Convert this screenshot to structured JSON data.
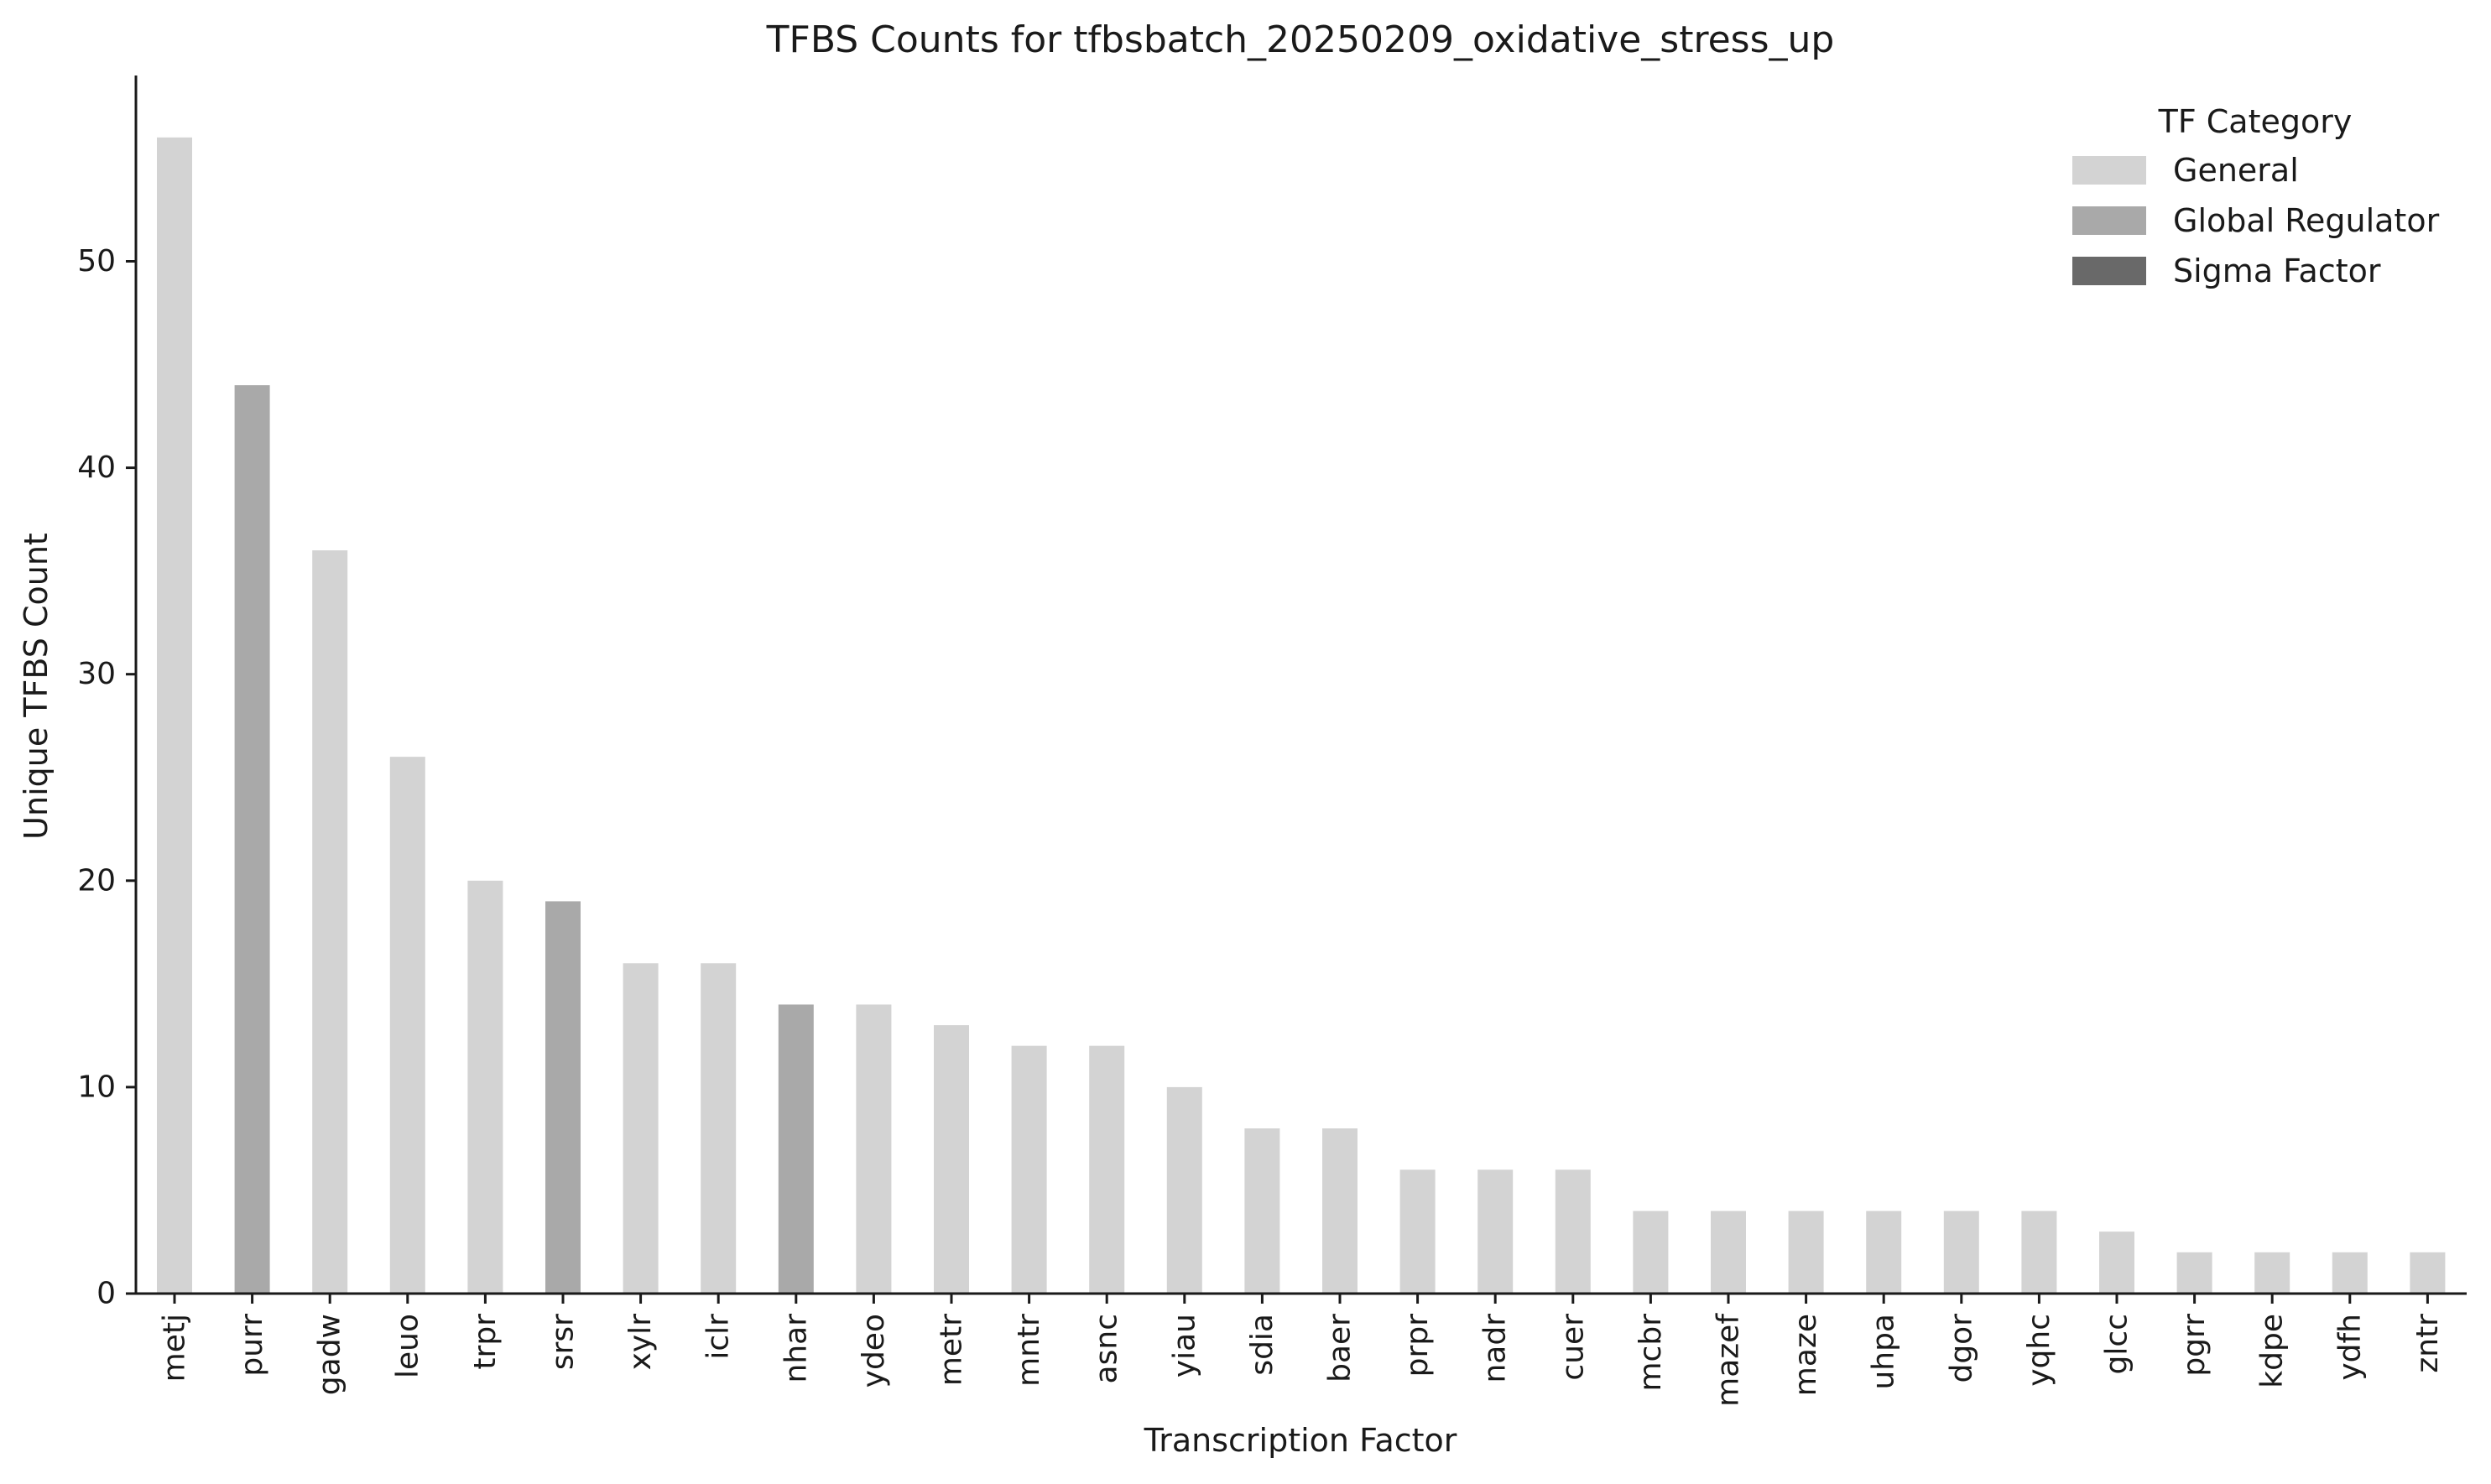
{
  "chart_data": {
    "type": "bar",
    "title": "TFBS Counts for tfbsbatch_20250209_oxidative_stress_up",
    "xlabel": "Transcription Factor",
    "ylabel": "Unique TFBS Count",
    "ylim": [
      0,
      59
    ],
    "yticks": [
      0,
      10,
      20,
      30,
      40,
      50
    ],
    "categories": [
      "metj",
      "purr",
      "gadw",
      "leuo",
      "trpr",
      "srsr",
      "xylr",
      "iclr",
      "nhar",
      "ydeo",
      "metr",
      "mntr",
      "asnc",
      "yiau",
      "sdia",
      "baer",
      "prpr",
      "nadr",
      "cuer",
      "mcbr",
      "mazef",
      "maze",
      "uhpa",
      "dgor",
      "yqhc",
      "glcc",
      "pgrr",
      "kdpe",
      "ydfh",
      "zntr"
    ],
    "values": [
      56,
      44,
      36,
      26,
      20,
      19,
      16,
      16,
      14,
      14,
      13,
      12,
      12,
      10,
      8,
      8,
      6,
      6,
      6,
      4,
      4,
      4,
      4,
      4,
      4,
      3,
      2,
      2,
      2,
      2
    ],
    "bar_category": [
      "General",
      "Global Regulator",
      "General",
      "General",
      "General",
      "Global Regulator",
      "General",
      "General",
      "Global Regulator",
      "General",
      "General",
      "General",
      "General",
      "General",
      "General",
      "General",
      "General",
      "General",
      "General",
      "General",
      "General",
      "General",
      "General",
      "General",
      "General",
      "General",
      "General",
      "General",
      "General",
      "General"
    ],
    "legend": {
      "title": "TF Category",
      "placement": "top-right",
      "entries": [
        {
          "label": "General",
          "color": "#d3d3d3"
        },
        {
          "label": "Global Regulator",
          "color": "#a9a9a9"
        },
        {
          "label": "Sigma Factor",
          "color": "#696969"
        }
      ]
    },
    "grid": false
  }
}
